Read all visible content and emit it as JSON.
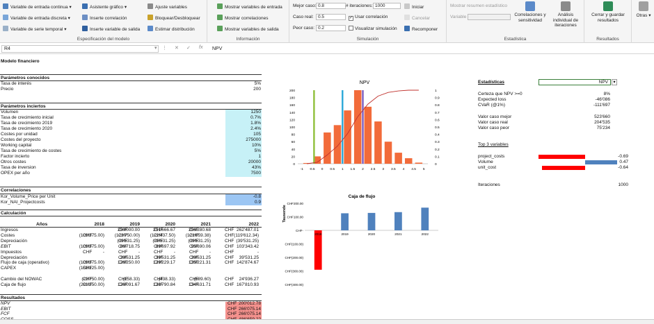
{
  "ribbon": {
    "modelo": {
      "items": [
        "Variable de entrada continua",
        "Variable de entrada discreta",
        "Variable de serie temporal",
        "Asistente gráfico",
        "Inserte correlación",
        "Inserte variable de salida",
        "Ajuste variables",
        "Bloquear/Desbloquear",
        "Estimar distribución"
      ],
      "label": "Especificación del modelo"
    },
    "info": {
      "items": [
        "Mostrar variables de entrada",
        "Mostrar correlaciones",
        "Mostrar variables de salida"
      ],
      "label": "Información"
    },
    "sim": {
      "mejor_label": "Mejor caso:",
      "mejor_val": "0.8",
      "iter_label": "# iteraciones:",
      "iter_val": "1000",
      "real_label": "Caso real:",
      "real_val": "0.5",
      "peor_label": "Peor caso:",
      "peor_val": "0.2",
      "usar_corr": "Usar correlación",
      "visualizar": "Visualizar simulación",
      "iniciar": "Iniciar",
      "cancelar": "Cancelar",
      "recomponer": "Recomponer",
      "label": "Simulación"
    },
    "est": {
      "resumen": "Mostrar resumen estadístico",
      "variable": "Variable",
      "correlaciones": "Correlaciones y sensitividad",
      "analisis": "Análisis individual de iteraciones",
      "label": "Estadística"
    },
    "res": {
      "cerrar": "Cerrar y guardar resultados",
      "label": "Resultados"
    },
    "otras": {
      "label": "Otras"
    }
  },
  "formula_bar": {
    "cell": "R4",
    "value": "NPV"
  },
  "sheet": {
    "title": "Modelo financiero",
    "conocidos": {
      "title": "Parámetros conocidos",
      "rows": [
        {
          "label": "Tasa de interés",
          "value": "5%"
        },
        {
          "label": "Precio",
          "value": "200"
        }
      ]
    },
    "inciertos": {
      "title": "Parámetros inciertos",
      "rows": [
        {
          "label": "Volumen",
          "value": "1250"
        },
        {
          "label": "Tasa de crecimiento inicial",
          "value": "0.7%"
        },
        {
          "label": "Tasa de crecimiento 2019",
          "value": "1.8%"
        },
        {
          "label": "Tasa de crecimiento 2020",
          "value": "2.4%"
        },
        {
          "label": "Costes por unidad",
          "value": "105"
        },
        {
          "label": "Costes del proyecto",
          "value": "275000"
        },
        {
          "label": "Working capital",
          "value": "10%"
        },
        {
          "label": "Tasa de crecimiento de costes",
          "value": "5%"
        },
        {
          "label": "Factor incierto",
          "value": "1"
        },
        {
          "label": "Otros costes",
          "value": "20000"
        },
        {
          "label": "Tasa de inversion",
          "value": "43%"
        },
        {
          "label": "OPEX per año",
          "value": "7500"
        }
      ]
    },
    "correlaciones": {
      "title": "Correlaciones",
      "rows": [
        {
          "label": "Kor_Volume_Price per Unit",
          "value": "-0.8"
        },
        {
          "label": "Kor_NAI_Projectcosts",
          "value": "0.9"
        }
      ]
    },
    "calculo": {
      "title": "Calculación",
      "years_label": "Años",
      "years": [
        "2018",
        "2019",
        "2020",
        "2021",
        "2022"
      ],
      "currency": "CHF",
      "rows": [
        {
          "label": "Ingresos",
          "vals": [
            "",
            "250'000.00",
            "251'666.67",
            "256'280.68",
            "262'487.01"
          ]
        },
        {
          "label": "Costes",
          "vals": [
            "(109'375.00)",
            "(123'750.00)",
            "(122'437.50)",
            "(121'059.38)",
            "(119'612.34)"
          ]
        },
        {
          "label": "Depreciación",
          "vals": [
            "",
            "(39'531.25)",
            "(39'531.25)",
            "(39'531.25)",
            "(39'531.25)"
          ]
        },
        {
          "label": "EBIT",
          "vals": [
            "(109'375.00)",
            "86'718.75",
            "89'697.92",
            "95'690.06",
            "103'343.42"
          ]
        },
        {
          "label": "Impuestos",
          "vals": [
            "-",
            "-",
            "-",
            "-",
            "-"
          ]
        },
        {
          "label": "Depreciación",
          "vals": [
            "",
            "39'531.25",
            "39'531.25",
            "39'531.25",
            "39'531.25"
          ]
        },
        {
          "label": "Flujo de caja (operativo)",
          "vals": [
            "(109'375.00)",
            "126'250.00",
            "129'229.17",
            "135'221.31",
            "142'874.67"
          ]
        },
        {
          "label": "CAPEX",
          "vals": [
            "(158'125.00)",
            "",
            "",
            "",
            ""
          ]
        },
        {
          "label": "",
          "vals": [
            "",
            "",
            "",
            "",
            ""
          ]
        },
        {
          "label": "Cambio del NOWAC",
          "vals": [
            "(23'750.00)",
            "(158.33)",
            "(438.33)",
            "(589.60)",
            "24'936.27"
          ]
        },
        {
          "label": "Caja de flujo",
          "vals": [
            "(291'250.00)",
            "126'091.67",
            "128'790.84",
            "134'631.71",
            "167'810.93"
          ]
        }
      ]
    },
    "resultados": {
      "title": "Resultados",
      "rows": [
        {
          "label": "NPV",
          "value": "200'012.78"
        },
        {
          "label": "EBIT",
          "value": "266'075.14"
        },
        {
          "label": "FCF",
          "value": "266'075.14"
        },
        {
          "label": "COSS",
          "value": "-486'659.22"
        }
      ]
    }
  },
  "stats": {
    "title": "Estadísticas",
    "selected": "NPV",
    "rows": [
      {
        "label": "Certeza que NPV >=0",
        "value": "8%"
      },
      {
        "label": "Expected loss",
        "value": "-46'086"
      },
      {
        "label": "CVaR (@1%)",
        "value": "-111'697"
      },
      {
        "label": "Valor caso mejor",
        "value": "523'660"
      },
      {
        "label": "Valor caso real",
        "value": "204'535"
      },
      {
        "label": "Valor caso peor",
        "value": "75'234"
      }
    ],
    "top_title": "Top 3 variables",
    "top": [
      {
        "label": "project_costs",
        "value": "-0.69",
        "color": "#ff0000"
      },
      {
        "label": "Volume",
        "value": "0.47",
        "color": "#4f81bd"
      },
      {
        "label": "unit_cost",
        "value": "-0.64",
        "color": "#ff0000"
      }
    ],
    "iter_label": "Iteraciones",
    "iter_value": "1000"
  },
  "chart_data": [
    {
      "type": "bar",
      "title": "NPV",
      "x": [
        -1,
        -0.5,
        0,
        0.5,
        1,
        1.5,
        2,
        2.5,
        3,
        3.5,
        4,
        4.5
      ],
      "values": [
        2,
        20,
        85,
        105,
        145,
        200,
        155,
        115,
        60,
        30,
        15,
        3
      ],
      "cumulative": [
        0.0,
        0.02,
        0.12,
        0.24,
        0.41,
        0.64,
        0.81,
        0.92,
        0.97,
        0.99,
        1.0,
        1.0
      ],
      "xticks": [
        "-1",
        "-0.5",
        "0",
        "0.5",
        "1",
        "1.5",
        "2",
        "2.5",
        "3",
        "3.5",
        "4",
        "4.5",
        "5"
      ],
      "yticks": [
        "0",
        "20",
        "40",
        "60",
        "80",
        "100",
        "120",
        "140",
        "160",
        "180",
        "200"
      ],
      "y2ticks": [
        "0",
        "0.1",
        "0.2",
        "0.3",
        "0.4",
        "0.5",
        "0.6",
        "0.7",
        "0.8",
        "0.9",
        "1"
      ],
      "ylim": [
        0,
        200
      ],
      "y2lim": [
        0,
        1
      ],
      "xlim": [
        -1.2,
        5.2
      ],
      "markers": [
        {
          "x": -0.4,
          "color": "#8fbf3a"
        },
        {
          "x": 1,
          "color": "#2aa8d8"
        },
        {
          "x": 2,
          "color": "#7a5cc0"
        }
      ],
      "bar_color": "#f26b3a",
      "line_color": "#c0302b"
    },
    {
      "type": "bar",
      "title": "Caja de flujo",
      "ylabel": "Tausende",
      "categories": [
        "2018",
        "2019",
        "2020",
        "2021",
        "2022"
      ],
      "values": [
        -291.25,
        126.09,
        128.79,
        134.63,
        167.81
      ],
      "yticks": [
        "CHF200.00",
        "CHF100.00",
        "CHF-",
        "CHF(100.00)",
        "CHF(200.00)",
        "CHF(300.00)",
        "CHF(400.00)"
      ],
      "ylim": [
        -400,
        200
      ],
      "colors": {
        "negative": "#ff0000",
        "positive": "#4f81bd"
      }
    }
  ]
}
